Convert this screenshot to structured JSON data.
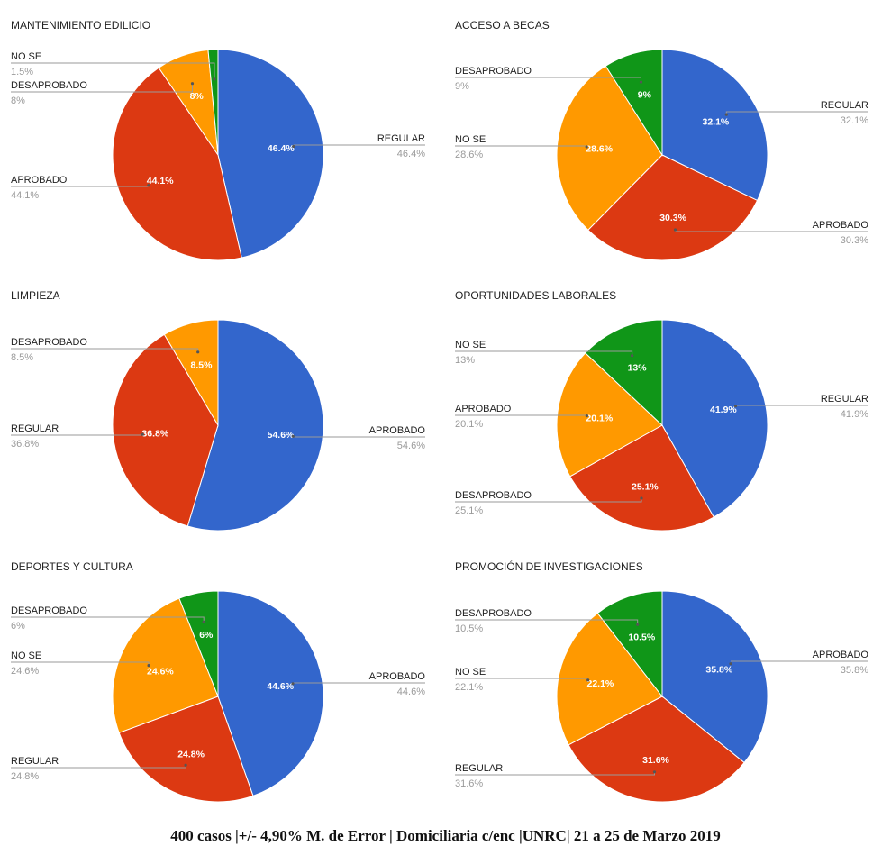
{
  "chart_data": [
    {
      "type": "pie",
      "title": "MANTENIMIENTO EDILICIO",
      "slices": [
        {
          "name": "REGULAR",
          "value": 46.4,
          "label": "46.4%",
          "legend_pct": "46.4%",
          "color": "#3366cc"
        },
        {
          "name": "APROBADO",
          "value": 44.1,
          "label": "44.1%",
          "legend_pct": "44.1%",
          "color": "#dc3912"
        },
        {
          "name": "DESAPROBADO",
          "value": 8,
          "label": "8%",
          "legend_pct": "8%",
          "color": "#ff9900"
        },
        {
          "name": "NO SE",
          "value": 1.5,
          "label": "",
          "legend_pct": "1.5%",
          "color": "#109618"
        }
      ]
    },
    {
      "type": "pie",
      "title": "ACCESO A BECAS",
      "slices": [
        {
          "name": "REGULAR",
          "value": 32.1,
          "label": "32.1%",
          "legend_pct": "32.1%",
          "color": "#3366cc"
        },
        {
          "name": "APROBADO",
          "value": 30.3,
          "label": "30.3%",
          "legend_pct": "30.3%",
          "color": "#dc3912"
        },
        {
          "name": "NO SE",
          "value": 28.6,
          "label": "28.6%",
          "legend_pct": "28.6%",
          "color": "#ff9900"
        },
        {
          "name": "DESAPROBADO",
          "value": 9,
          "label": "9%",
          "legend_pct": "9%",
          "color": "#109618"
        }
      ]
    },
    {
      "type": "pie",
      "title": "LIMPIEZA",
      "slices": [
        {
          "name": "APROBADO",
          "value": 54.6,
          "label": "54.6%",
          "legend_pct": "54.6%",
          "color": "#3366cc"
        },
        {
          "name": "REGULAR",
          "value": 36.8,
          "label": "36.8%",
          "legend_pct": "36.8%",
          "color": "#dc3912"
        },
        {
          "name": "DESAPROBADO",
          "value": 8.5,
          "label": "8.5%",
          "legend_pct": "8.5%",
          "color": "#ff9900"
        }
      ]
    },
    {
      "type": "pie",
      "title": "OPORTUNIDADES LABORALES",
      "slices": [
        {
          "name": "REGULAR",
          "value": 41.9,
          "label": "41.9%",
          "legend_pct": "41.9%",
          "color": "#3366cc"
        },
        {
          "name": "DESAPROBADO",
          "value": 25.1,
          "label": "25.1%",
          "legend_pct": "25.1%",
          "color": "#dc3912"
        },
        {
          "name": "APROBADO",
          "value": 20.1,
          "label": "20.1%",
          "legend_pct": "20.1%",
          "color": "#ff9900"
        },
        {
          "name": "NO SE",
          "value": 13,
          "label": "13%",
          "legend_pct": "13%",
          "color": "#109618"
        }
      ]
    },
    {
      "type": "pie",
      "title": "DEPORTES Y CULTURA",
      "slices": [
        {
          "name": "APROBADO",
          "value": 44.6,
          "label": "44.6%",
          "legend_pct": "44.6%",
          "color": "#3366cc"
        },
        {
          "name": "REGULAR",
          "value": 24.8,
          "label": "24.8%",
          "legend_pct": "24.8%",
          "color": "#dc3912"
        },
        {
          "name": "NO SE",
          "value": 24.6,
          "label": "24.6%",
          "legend_pct": "24.6%",
          "color": "#ff9900"
        },
        {
          "name": "DESAPROBADO",
          "value": 6,
          "label": "6%",
          "legend_pct": "6%",
          "color": "#109618"
        }
      ]
    },
    {
      "type": "pie",
      "title": "PROMOCIÓN DE INVESTIGACIONES",
      "slices": [
        {
          "name": "APROBADO",
          "value": 35.8,
          "label": "35.8%",
          "legend_pct": "35.8%",
          "color": "#3366cc"
        },
        {
          "name": "REGULAR",
          "value": 31.6,
          "label": "31.6%",
          "legend_pct": "31.6%",
          "color": "#dc3912"
        },
        {
          "name": "NO SE",
          "value": 22.1,
          "label": "22.1%",
          "legend_pct": "22.1%",
          "color": "#ff9900"
        },
        {
          "name": "DESAPROBADO",
          "value": 10.5,
          "label": "10.5%",
          "legend_pct": "10.5%",
          "color": "#109618"
        }
      ]
    }
  ],
  "footer": {
    "text": "400  casos  |+/- 4,90% M. de Error  |   Domiciliaria c/enc  |UNRC|  21 a 25 de Marzo 2019"
  }
}
